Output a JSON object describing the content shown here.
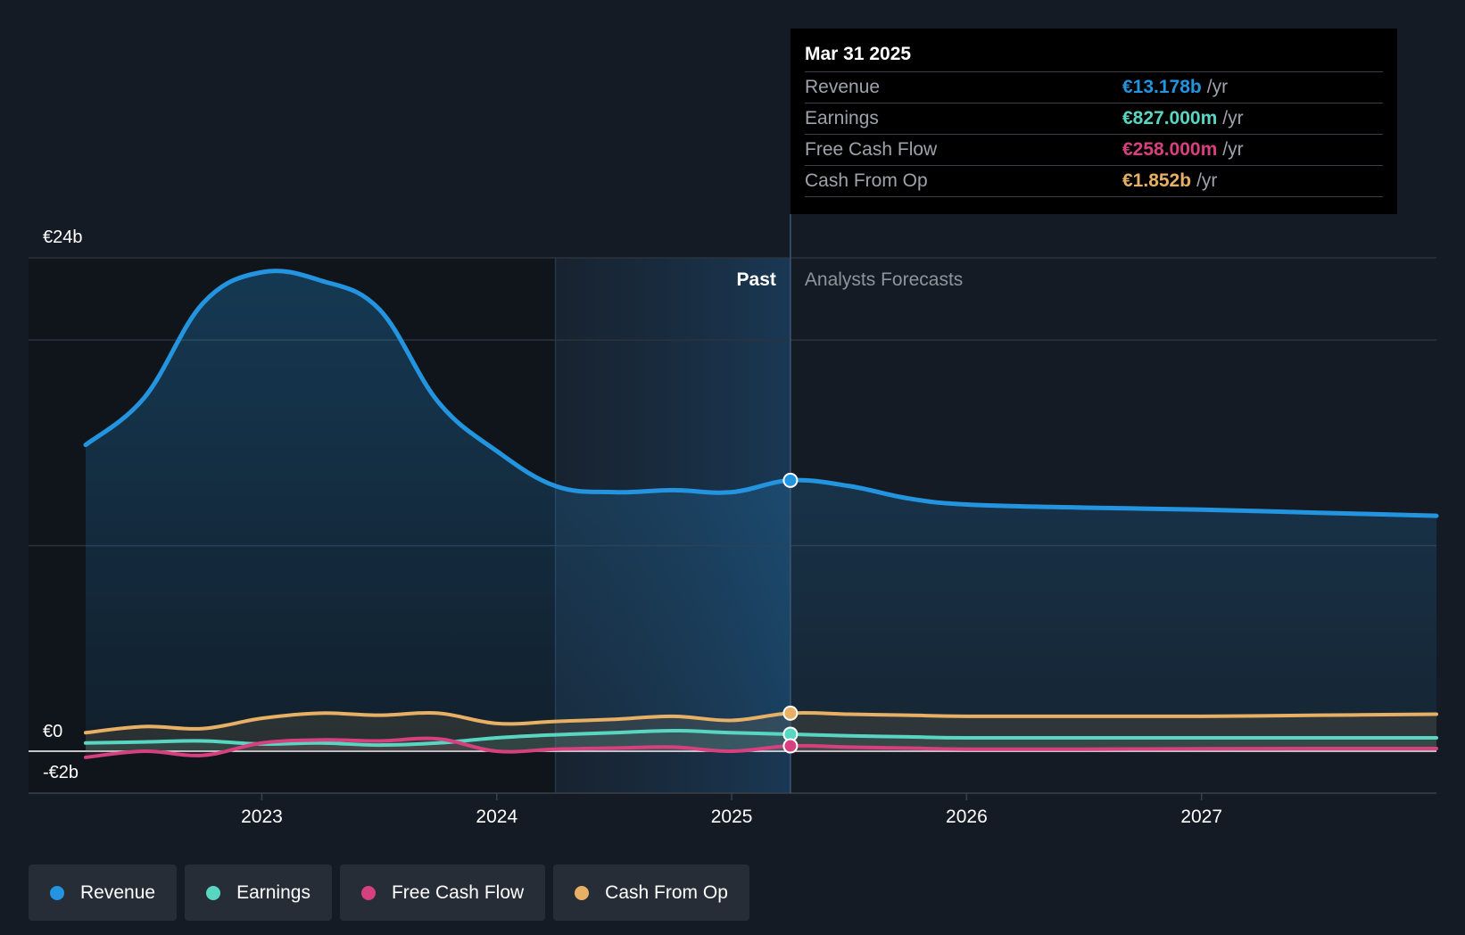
{
  "chart_data": {
    "type": "area",
    "y_axis": {
      "top_label": "€24b",
      "zero_label": "€0",
      "bottom_label": "-€2b",
      "ylim": [
        -2,
        24
      ]
    },
    "x_ticks": [
      "2023",
      "2024",
      "2025",
      "2026",
      "2027"
    ],
    "xlim": [
      2022.25,
      2028.0
    ],
    "past_label": "Past",
    "forecast_label": "Analysts Forecasts",
    "highlight_start": 2024.25,
    "divider_x": 2025.25,
    "series": [
      {
        "name": "Revenue",
        "color": "#2394df",
        "x": [
          2022.25,
          2022.5,
          2022.75,
          2023.0,
          2023.25,
          2023.5,
          2023.75,
          2024.0,
          2024.25,
          2024.5,
          2024.75,
          2025.0,
          2025.25,
          2025.5,
          2025.75,
          2026.0,
          2026.5,
          2027.0,
          2027.5,
          2028.0
        ],
        "y": [
          14.9,
          17.2,
          21.8,
          23.3,
          22.9,
          21.5,
          17.0,
          14.6,
          12.9,
          12.6,
          12.7,
          12.6,
          13.178,
          12.9,
          12.3,
          12.0,
          11.85,
          11.75,
          11.6,
          11.45
        ]
      },
      {
        "name": "Earnings",
        "color": "#58d6c1",
        "x": [
          2022.25,
          2022.5,
          2022.75,
          2023.0,
          2023.25,
          2023.5,
          2023.75,
          2024.0,
          2024.25,
          2024.5,
          2024.75,
          2025.0,
          2025.25,
          2025.5,
          2025.75,
          2026.0,
          2026.5,
          2027.0,
          2027.5,
          2028.0
        ],
        "y": [
          0.4,
          0.45,
          0.5,
          0.35,
          0.4,
          0.3,
          0.4,
          0.65,
          0.8,
          0.9,
          1.0,
          0.9,
          0.827,
          0.75,
          0.7,
          0.65,
          0.65,
          0.65,
          0.65,
          0.65
        ]
      },
      {
        "name": "Free Cash Flow",
        "color": "#d6407e",
        "x": [
          2022.25,
          2022.5,
          2022.75,
          2023.0,
          2023.25,
          2023.5,
          2023.75,
          2024.0,
          2024.25,
          2024.5,
          2024.75,
          2025.0,
          2025.25,
          2025.5,
          2025.75,
          2026.0,
          2026.5,
          2027.0,
          2027.5,
          2028.0
        ],
        "y": [
          -0.3,
          0.0,
          -0.2,
          0.4,
          0.55,
          0.5,
          0.6,
          0.0,
          0.1,
          0.15,
          0.2,
          0.0,
          0.258,
          0.2,
          0.15,
          0.1,
          0.1,
          0.12,
          0.13,
          0.13
        ]
      },
      {
        "name": "Cash From Op",
        "color": "#e8b064",
        "x": [
          2022.25,
          2022.5,
          2022.75,
          2023.0,
          2023.25,
          2023.5,
          2023.75,
          2024.0,
          2024.25,
          2024.5,
          2024.75,
          2025.0,
          2025.25,
          2025.5,
          2025.75,
          2026.0,
          2026.5,
          2027.0,
          2027.5,
          2028.0
        ],
        "y": [
          0.9,
          1.2,
          1.1,
          1.6,
          1.85,
          1.75,
          1.85,
          1.35,
          1.45,
          1.55,
          1.7,
          1.5,
          1.852,
          1.8,
          1.75,
          1.7,
          1.7,
          1.7,
          1.75,
          1.8
        ]
      }
    ]
  },
  "tooltip": {
    "date": "Mar 31 2025",
    "rows": [
      {
        "label": "Revenue",
        "value": "€13.178b",
        "unit": "/yr",
        "color": "#2394df"
      },
      {
        "label": "Earnings",
        "value": "€827.000m",
        "unit": "/yr",
        "color": "#58d6c1"
      },
      {
        "label": "Free Cash Flow",
        "value": "€258.000m",
        "unit": "/yr",
        "color": "#d6407e"
      },
      {
        "label": "Cash From Op",
        "value": "€1.852b",
        "unit": "/yr",
        "color": "#e8b064"
      }
    ]
  },
  "legend": [
    {
      "label": "Revenue",
      "color": "#2394df"
    },
    {
      "label": "Earnings",
      "color": "#58d6c1"
    },
    {
      "label": "Free Cash Flow",
      "color": "#d6407e"
    },
    {
      "label": "Cash From Op",
      "color": "#e8b064"
    }
  ]
}
